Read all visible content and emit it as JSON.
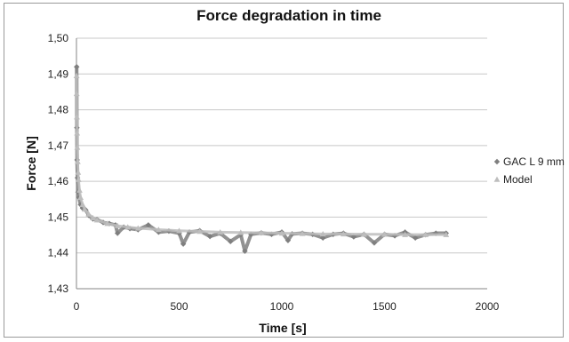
{
  "chart_data": {
    "type": "scatter",
    "title": "Force degradation in  time",
    "xlabel": "Time [s]",
    "ylabel": "Force [N]",
    "xlim": [
      0,
      2000
    ],
    "ylim": [
      1.43,
      1.5
    ],
    "x_ticks": [
      0,
      500,
      1000,
      1500,
      2000
    ],
    "x_tick_labels": [
      "0",
      "500",
      "1000",
      "1500",
      "2000"
    ],
    "y_ticks": [
      1.43,
      1.44,
      1.45,
      1.46,
      1.47,
      1.48,
      1.49,
      1.5
    ],
    "y_tick_labels": [
      "1,43",
      "1,44",
      "1,45",
      "1,46",
      "1,47",
      "1,48",
      "1,49",
      "1,50"
    ],
    "grid": "horizontal",
    "legend_position": "right",
    "series": [
      {
        "name": "GAC L 9 mm",
        "marker": "diamond",
        "color": "#7f7f7f",
        "x": [
          1,
          2,
          3,
          5,
          8,
          12,
          20,
          30,
          45,
          60,
          80,
          100,
          130,
          160,
          190,
          200,
          230,
          260,
          300,
          350,
          400,
          450,
          500,
          520,
          550,
          600,
          650,
          700,
          750,
          800,
          820,
          850,
          900,
          950,
          1000,
          1030,
          1050,
          1100,
          1150,
          1200,
          1250,
          1300,
          1350,
          1400,
          1450,
          1500,
          1550,
          1600,
          1650,
          1700,
          1750,
          1800
        ],
        "y": [
          1.492,
          1.475,
          1.466,
          1.461,
          1.457,
          1.4555,
          1.4535,
          1.4525,
          1.452,
          1.4505,
          1.4495,
          1.4493,
          1.4485,
          1.4482,
          1.4478,
          1.4455,
          1.4472,
          1.4468,
          1.4465,
          1.4478,
          1.4458,
          1.4461,
          1.4455,
          1.4425,
          1.4458,
          1.4462,
          1.4446,
          1.4455,
          1.4432,
          1.4451,
          1.4405,
          1.4452,
          1.4456,
          1.4452,
          1.4458,
          1.4435,
          1.4453,
          1.4455,
          1.4452,
          1.4442,
          1.4452,
          1.4455,
          1.4445,
          1.4452,
          1.4428,
          1.4452,
          1.4448,
          1.4458,
          1.4442,
          1.4451,
          1.4455,
          1.4455
        ]
      },
      {
        "name": "Model",
        "marker": "triangle",
        "color": "#bdbdbd",
        "x": [
          0.5,
          1,
          2,
          3,
          4,
          6,
          8,
          10,
          15,
          20,
          30,
          40,
          60,
          80,
          100,
          150,
          200,
          250,
          300,
          400,
          500,
          600,
          700,
          800,
          900,
          1000,
          1100,
          1200,
          1300,
          1400,
          1500,
          1600,
          1700,
          1800
        ],
        "y": [
          1.4895,
          1.4845,
          1.478,
          1.4735,
          1.4695,
          1.4655,
          1.4625,
          1.4605,
          1.4575,
          1.4555,
          1.4535,
          1.4522,
          1.4508,
          1.4498,
          1.4492,
          1.4482,
          1.4476,
          1.4472,
          1.4469,
          1.4465,
          1.4462,
          1.446,
          1.4458,
          1.4457,
          1.4456,
          1.4455,
          1.4454,
          1.4453,
          1.4453,
          1.4452,
          1.4452,
          1.4451,
          1.4451,
          1.4451
        ]
      }
    ]
  }
}
